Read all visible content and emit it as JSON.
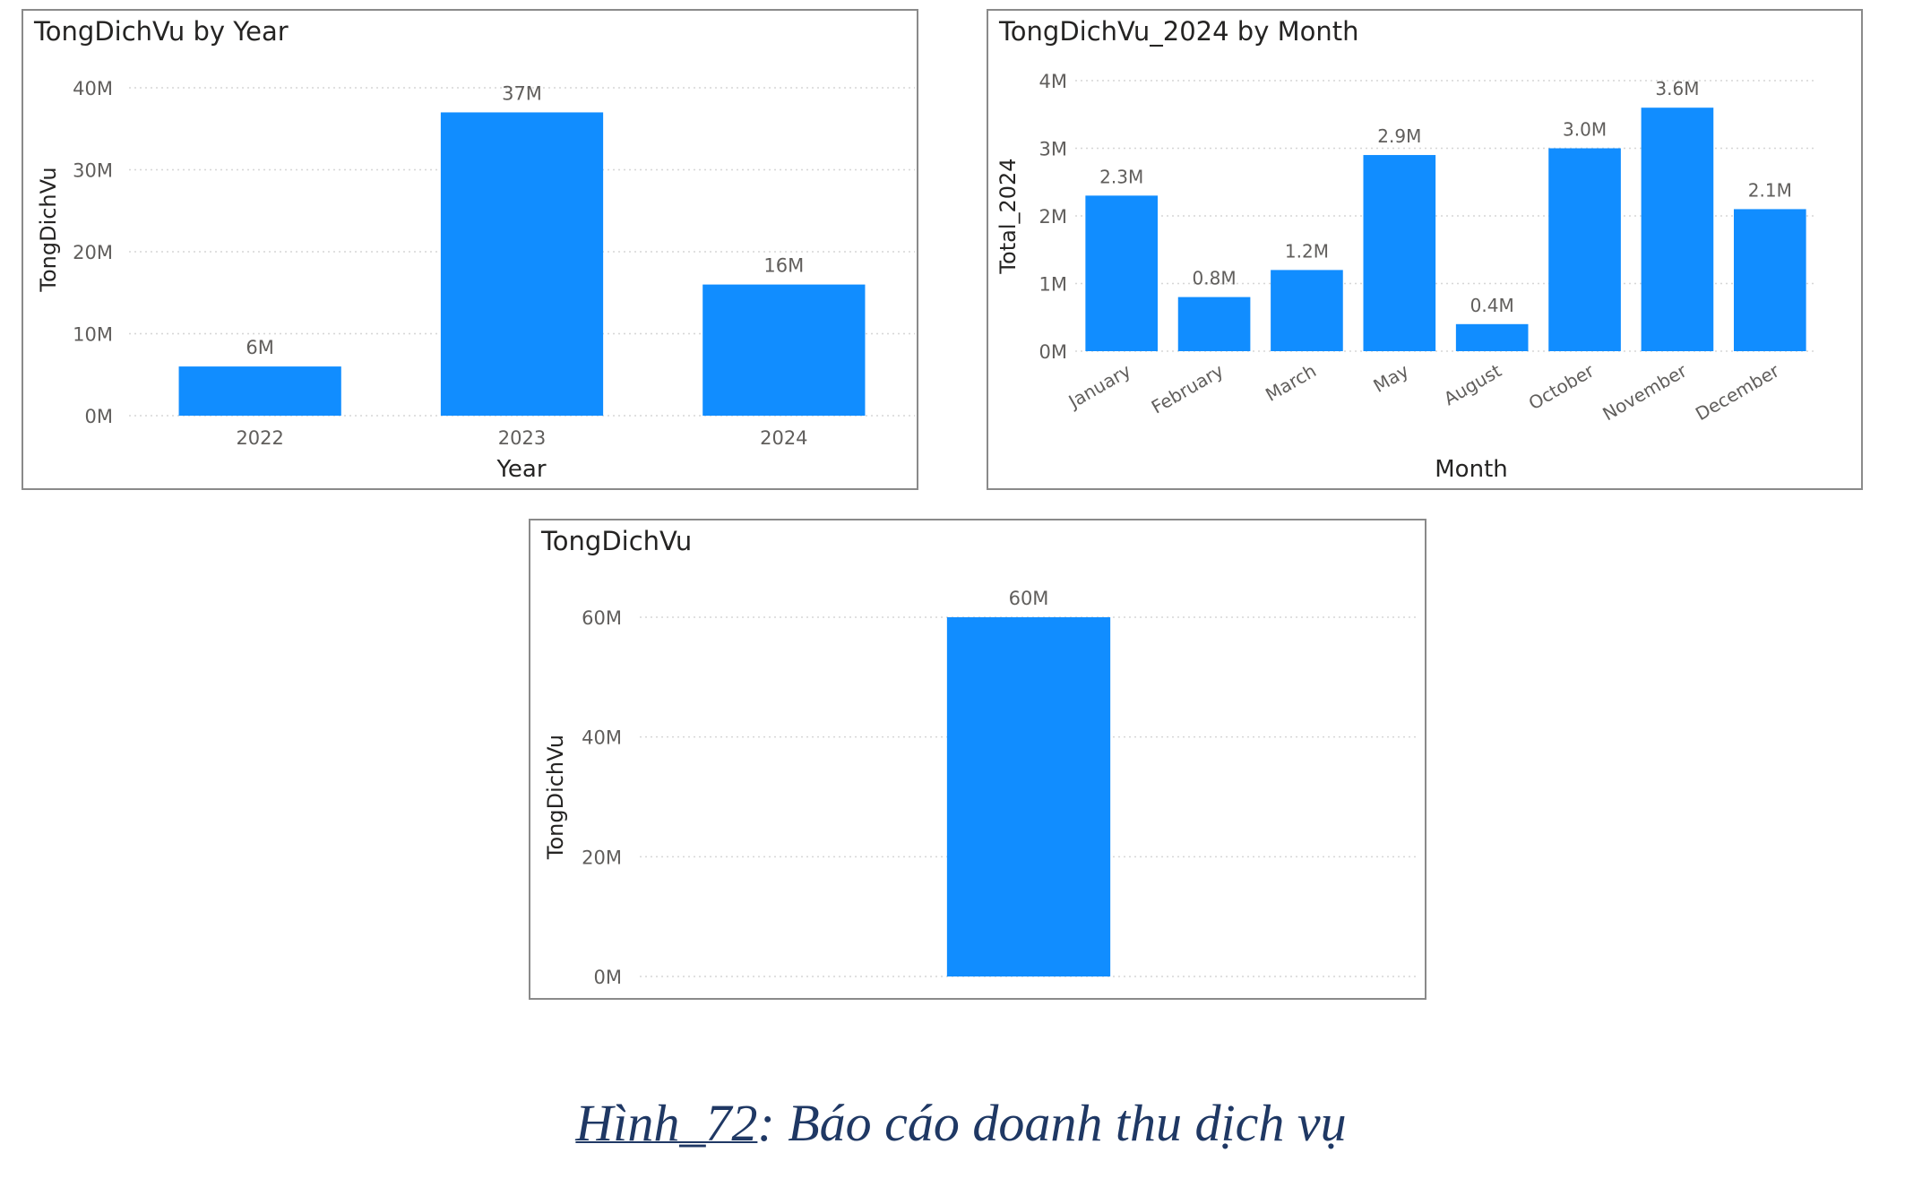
{
  "colors": {
    "bar": "#118dff",
    "grid": "#d6d6d6",
    "text": "#605e5c",
    "title": "#252423"
  },
  "chart_data": [
    {
      "type": "bar",
      "title": "TongDichVu by Year",
      "xlabel": "Year",
      "ylabel": "TongDichVu",
      "categories": [
        "2022",
        "2023",
        "2024"
      ],
      "values": [
        6,
        37,
        16
      ],
      "data_labels": [
        "6M",
        "37M",
        "16M"
      ],
      "y_ticks": [
        0,
        10,
        20,
        30,
        40
      ],
      "y_tick_labels": [
        "0M",
        "10M",
        "20M",
        "30M",
        "40M"
      ],
      "ylim": [
        0,
        40
      ],
      "unit": "M",
      "grid": true
    },
    {
      "type": "bar",
      "title": "TongDichVu_2024 by Month",
      "xlabel": "Month",
      "ylabel": "Total_2024",
      "categories": [
        "January",
        "February",
        "March",
        "May",
        "August",
        "October",
        "November",
        "December"
      ],
      "values": [
        2.3,
        0.8,
        1.2,
        2.9,
        0.4,
        3.0,
        3.6,
        2.1
      ],
      "data_labels": [
        "2.3M",
        "0.8M",
        "1.2M",
        "2.9M",
        "0.4M",
        "3.0M",
        "3.6M",
        "2.1M"
      ],
      "y_ticks": [
        0,
        1,
        2,
        3,
        4
      ],
      "y_tick_labels": [
        "0M",
        "1M",
        "2M",
        "3M",
        "4M"
      ],
      "ylim": [
        0,
        4
      ],
      "unit": "M",
      "grid": true
    },
    {
      "type": "bar",
      "title": "TongDichVu",
      "xlabel": "",
      "ylabel": "TongDichVu",
      "categories": [
        ""
      ],
      "values": [
        60
      ],
      "data_labels": [
        "60M"
      ],
      "y_ticks": [
        0,
        20,
        40,
        60
      ],
      "y_tick_labels": [
        "0M",
        "20M",
        "40M",
        "60M"
      ],
      "ylim": [
        0,
        60
      ],
      "unit": "M",
      "grid": true
    }
  ],
  "caption": {
    "label": "Hình_72",
    "text": ": Báo cáo doanh thu dịch vụ"
  }
}
